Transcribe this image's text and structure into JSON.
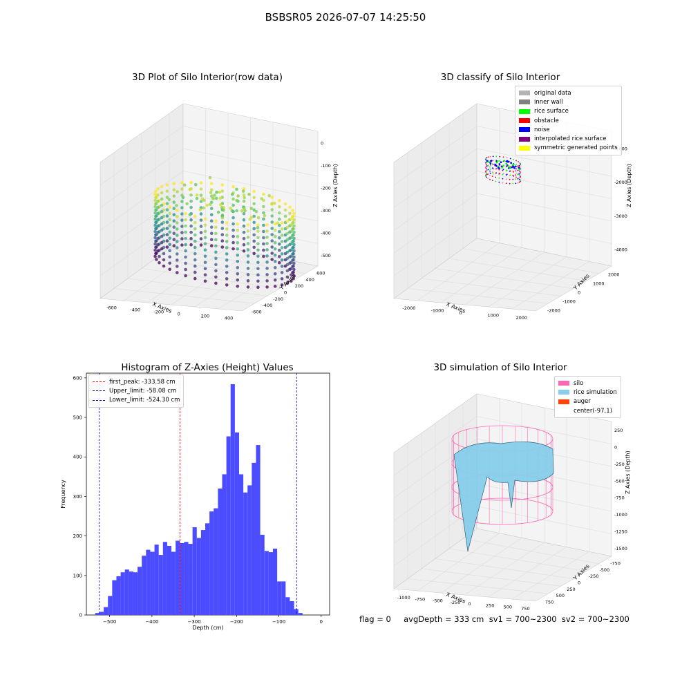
{
  "suptitle": "BSBSR05 2026-07-07 14:25:50",
  "footer": "flag = 0     avgDepth = 333 cm  sv1 = 700~2300  sv2 = 700~2300",
  "panel1": {
    "title": "3D Plot of Silo Interior(row data)",
    "xlabel": "X Axies",
    "ylabel": "Y Axies",
    "zlabel": "Z Axies (Depth)",
    "xticks": [
      "-600",
      "-400",
      "-200",
      "0",
      "200",
      "400"
    ],
    "yticks": [
      "-600",
      "-400",
      "-200",
      "0",
      "200",
      "400",
      "600"
    ],
    "zticks": [
      "0",
      "-100",
      "-200",
      "-300",
      "-400",
      "-500"
    ]
  },
  "panel2": {
    "title": "3D classify of Silo Interior",
    "xlabel": "X Axies",
    "ylabel": "Y Axies",
    "zlabel": "Z Axies (Depth)",
    "xticks": [
      "-2000",
      "-1000",
      "0",
      "1000",
      "2000"
    ],
    "yticks": [
      "-2000",
      "-1000",
      "0",
      "1000",
      "2000"
    ],
    "zticks": [
      "-1000",
      "-2000",
      "-3000",
      "-4000"
    ],
    "legend": [
      {
        "label": "original data",
        "color": "#b4b4b4"
      },
      {
        "label": "inner wall",
        "color": "#808080"
      },
      {
        "label": "rice surface",
        "color": "#00ff00"
      },
      {
        "label": "obstacle",
        "color": "#ff0000"
      },
      {
        "label": "noise",
        "color": "#0000ff"
      },
      {
        "label": "interpolated rice surface",
        "color": "#800080"
      },
      {
        "label": "symmetric generated points",
        "color": "#ffff00"
      }
    ]
  },
  "panel4": {
    "title": "3D simulation of Silo Interior",
    "xlabel": "X Axies",
    "ylabel": "Y Axies",
    "zlabel": "Z Axies (Depth)",
    "xticks": [
      "-1000",
      "-750",
      "-500",
      "-250",
      "0",
      "250",
      "500",
      "750"
    ],
    "yticks": [
      "750",
      "500",
      "250",
      "0",
      "-250",
      "-500",
      "-750"
    ],
    "zticks": [
      "250",
      "0",
      "-250",
      "-500",
      "-750",
      "-1000",
      "-1250",
      "-1500"
    ],
    "legend": [
      {
        "label": "silo",
        "color": "#ff69b4"
      },
      {
        "label": "rice simulation",
        "color": "#87ceeb"
      },
      {
        "label": "auger",
        "color": "#ff4500"
      },
      {
        "label": "center(-97,1)",
        "color": "#ffffff"
      }
    ]
  },
  "chart_data": [
    {
      "type": "histogram",
      "title": "Histogram of Z-Axies (Height) Values",
      "xlabel": "Depth (cm)",
      "ylabel": "Frequency",
      "xlim": [
        -555,
        20
      ],
      "ylim": [
        0,
        612
      ],
      "xticks": [
        -500,
        -400,
        -300,
        -200,
        -100,
        0
      ],
      "yticks": [
        0,
        100,
        200,
        300,
        400,
        500,
        600
      ],
      "bin_start": -534,
      "bin_width": 10,
      "counts": [
        5,
        8,
        20,
        48,
        88,
        98,
        108,
        115,
        110,
        108,
        122,
        150,
        165,
        160,
        178,
        152,
        185,
        175,
        160,
        188,
        182,
        185,
        180,
        222,
        195,
        215,
        232,
        262,
        270,
        320,
        356,
        452,
        584,
        462,
        356,
        310,
        328,
        385,
        430,
        203,
        162,
        159,
        168,
        85,
        85,
        45,
        35,
        15,
        5
      ],
      "lines": [
        {
          "label": "first_peak: -333.58 cm",
          "value": -333.58,
          "color": "#ff0000"
        },
        {
          "label": "Upper_limit: -58.08 cm",
          "value": -58.08,
          "color": "#00008b"
        },
        {
          "label": "Lower_limit: -524.30 cm",
          "value": -524.3,
          "color": "#0000cd"
        }
      ]
    }
  ]
}
